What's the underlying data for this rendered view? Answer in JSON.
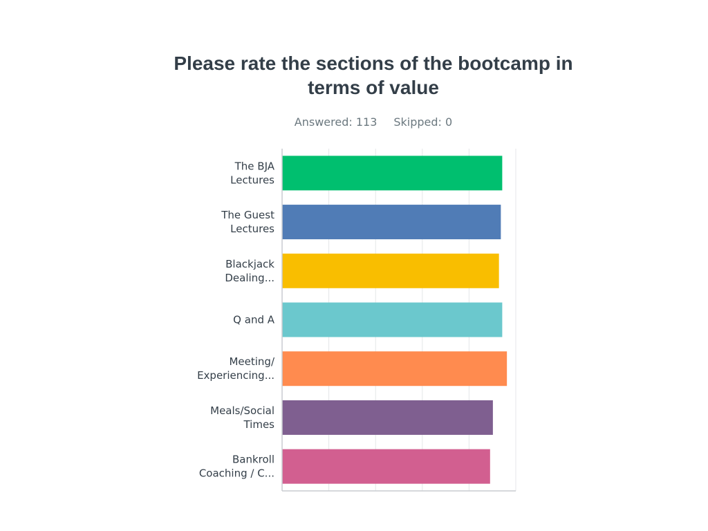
{
  "chart_data": {
    "type": "bar",
    "orientation": "horizontal",
    "title": "Please rate the sections of the bootcamp in terms of value",
    "answered_label": "Answered: 113",
    "skipped_label": "Skipped: 0",
    "categories": [
      [
        "The BJA",
        "Lectures"
      ],
      [
        "The Guest",
        "Lectures"
      ],
      [
        "Blackjack",
        "Dealing..."
      ],
      [
        "Q and A"
      ],
      [
        "Meeting/",
        "Experiencing..."
      ],
      [
        "Meals/Social",
        "Times"
      ],
      [
        "Bankroll",
        "Coaching / C..."
      ]
    ],
    "values": [
      4.71,
      4.68,
      4.64,
      4.71,
      4.81,
      4.51,
      4.45
    ],
    "xlim": [
      0,
      5
    ],
    "grid": true,
    "legend": "none",
    "colors": [
      "#00bf6f",
      "#507cb6",
      "#f9be00",
      "#6bc8cd",
      "#ff8b4f",
      "#7f5f90",
      "#d25f90"
    ]
  }
}
